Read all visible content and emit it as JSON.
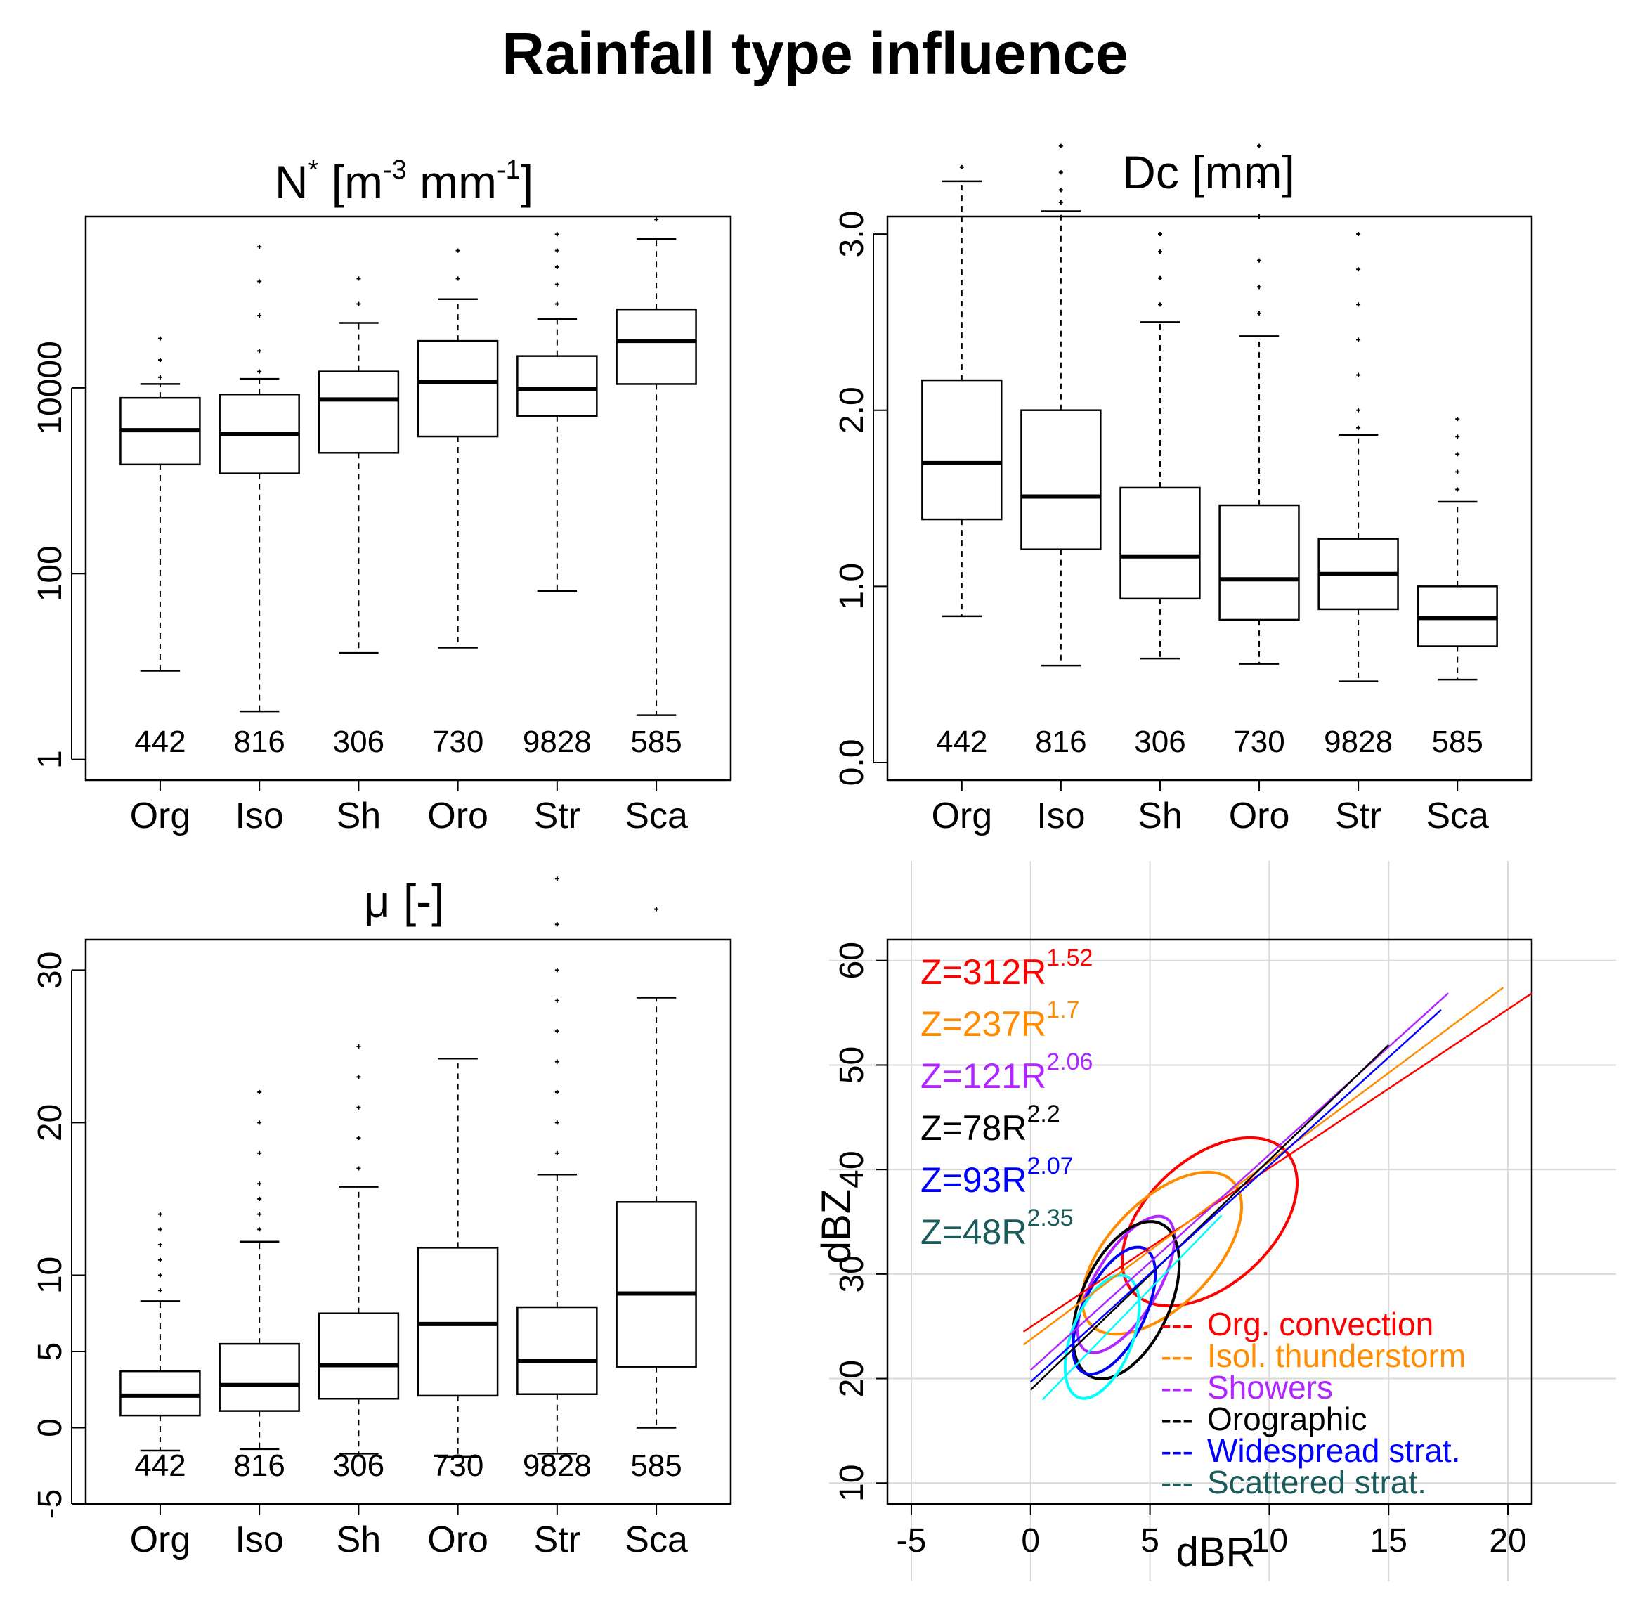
{
  "title": "Rainfall type influence",
  "colors": {
    "Org": "#ff0000",
    "Iso": "#ff8c00",
    "Sh": "#b026ff",
    "Oro": "#000000",
    "Str": "#0000ff",
    "Sca": "#00ffff",
    "Sca_text": "#1c5b5b"
  },
  "chart_data": [
    {
      "type": "box",
      "title_base": "N",
      "title_sup1": "*",
      "title_mid": " [m",
      "title_sup2": "-3",
      "title_mid2": " mm",
      "title_sup3": "-1",
      "title_end": "]",
      "yscale": "log",
      "ylim": [
        0.6,
        700000
      ],
      "yticks": [
        1,
        100,
        10000
      ],
      "ytick_labels": [
        "1",
        "100",
        "10000"
      ],
      "categories": [
        "Org",
        "Iso",
        "Sh",
        "Oro",
        "Str",
        "Sca"
      ],
      "counts": [
        "442",
        "816",
        "306",
        "730",
        "9828",
        "585"
      ],
      "boxes": [
        {
          "whislo": 9,
          "q1": 1500,
          "med": 3500,
          "q3": 7800,
          "whishi": 11000,
          "fliers_hi": [
            13000,
            20000,
            34000
          ]
        },
        {
          "whislo": 3.3,
          "q1": 1200,
          "med": 3200,
          "q3": 8500,
          "whishi": 12500,
          "fliers_hi": [
            15000,
            25000,
            60000,
            140000,
            330000
          ]
        },
        {
          "whislo": 14,
          "q1": 2000,
          "med": 7500,
          "q3": 15000,
          "whishi": 50000,
          "fliers_hi": [
            80000,
            150000
          ]
        },
        {
          "whislo": 16,
          "q1": 3000,
          "med": 11500,
          "q3": 32000,
          "whishi": 90000,
          "fliers_hi": [
            150000,
            300000
          ]
        },
        {
          "whislo": 65,
          "q1": 5000,
          "med": 9800,
          "q3": 22000,
          "whishi": 55000,
          "fliers_hi": [
            80000,
            130000,
            200000,
            300000,
            450000
          ]
        },
        {
          "whislo": 3.0,
          "q1": 11000,
          "med": 32000,
          "q3": 70000,
          "whishi": 400000,
          "fliers_hi": [
            650000
          ]
        }
      ]
    },
    {
      "type": "box",
      "title": "Dc [mm]",
      "yscale": "linear",
      "ylim": [
        -0.1,
        3.1
      ],
      "yticks": [
        0,
        1,
        2,
        3
      ],
      "ytick_labels": [
        "0.0",
        "1.0",
        "2.0",
        "3.0"
      ],
      "categories": [
        "Org",
        "Iso",
        "Sh",
        "Oro",
        "Str",
        "Sca"
      ],
      "counts": [
        "442",
        "816",
        "306",
        "730",
        "9828",
        "585"
      ],
      "boxes": [
        {
          "whislo": 0.83,
          "q1": 1.38,
          "med": 1.7,
          "q3": 2.17,
          "whishi": 3.3,
          "fliers_hi": [
            3.38
          ]
        },
        {
          "whislo": 0.55,
          "q1": 1.21,
          "med": 1.51,
          "q3": 2.0,
          "whishi": 3.13,
          "fliers_hi": [
            3.18,
            3.25,
            3.35,
            3.5
          ]
        },
        {
          "whislo": 0.59,
          "q1": 0.93,
          "med": 1.17,
          "q3": 1.56,
          "whishi": 2.5,
          "fliers_hi": [
            2.6,
            2.75,
            2.9,
            3.0
          ]
        },
        {
          "whislo": 0.56,
          "q1": 0.81,
          "med": 1.04,
          "q3": 1.46,
          "whishi": 2.42,
          "fliers_hi": [
            2.55,
            2.7,
            2.85,
            3.1,
            3.3,
            3.5
          ]
        },
        {
          "whislo": 0.46,
          "q1": 0.87,
          "med": 1.07,
          "q3": 1.27,
          "whishi": 1.86,
          "fliers_hi": [
            1.9,
            2.0,
            2.2,
            2.4,
            2.6,
            2.8,
            3.0
          ]
        },
        {
          "whislo": 0.47,
          "q1": 0.66,
          "med": 0.82,
          "q3": 1.0,
          "whishi": 1.48,
          "fliers_hi": [
            1.55,
            1.65,
            1.75,
            1.85,
            1.95
          ]
        }
      ]
    },
    {
      "type": "box",
      "title": "μ [-]",
      "yscale": "linear",
      "ylim": [
        -5,
        32
      ],
      "yticks": [
        -5,
        0,
        5,
        10,
        20,
        30
      ],
      "ytick_labels": [
        "-5",
        "0",
        "5",
        "10",
        "20",
        "30"
      ],
      "categories": [
        "Org",
        "Iso",
        "Sh",
        "Oro",
        "Str",
        "Sca"
      ],
      "counts": [
        "442",
        "816",
        "306",
        "730",
        "9828",
        "585"
      ],
      "boxes": [
        {
          "whislo": -1.5,
          "q1": 0.8,
          "med": 2.1,
          "q3": 3.7,
          "whishi": 8.3,
          "fliers_hi": [
            9,
            10,
            11,
            12,
            13,
            14
          ]
        },
        {
          "whislo": -1.4,
          "q1": 1.1,
          "med": 2.8,
          "q3": 5.5,
          "whishi": 12.2,
          "fliers_hi": [
            13,
            14,
            15,
            16,
            18,
            20,
            22
          ]
        },
        {
          "whislo": -1.7,
          "q1": 1.9,
          "med": 4.1,
          "q3": 7.5,
          "whishi": 15.8,
          "fliers_hi": [
            17,
            19,
            21,
            23,
            25
          ]
        },
        {
          "whislo": -1.9,
          "q1": 2.1,
          "med": 6.8,
          "q3": 11.8,
          "whishi": 24.2,
          "fliers_hi": []
        },
        {
          "whislo": -1.7,
          "q1": 2.2,
          "med": 4.4,
          "q3": 7.9,
          "whishi": 16.6,
          "fliers_hi": [
            18,
            20,
            22,
            24,
            26,
            28,
            30,
            33,
            36
          ]
        },
        {
          "whislo": 0,
          "q1": 4.0,
          "med": 8.8,
          "q3": 14.8,
          "whishi": 28.2,
          "fliers_hi": [
            34
          ]
        }
      ]
    },
    {
      "type": "scatter-ellipse",
      "xlabel": "dBR",
      "ylabel": "dBZ",
      "xlim": [
        -6,
        21
      ],
      "ylim": [
        8,
        62
      ],
      "xticks": [
        -5,
        0,
        5,
        10,
        15,
        20
      ],
      "yticks": [
        10,
        20,
        30,
        40,
        50,
        60
      ],
      "grid": true,
      "relations": [
        {
          "key": "Org",
          "base": "Z=312R",
          "exp": "1.52",
          "a": 312,
          "b": 1.52,
          "line_x": [
            -0.3,
            21
          ],
          "label": "Org. convection"
        },
        {
          "key": "Iso",
          "base": "Z=237R",
          "exp": "1.7",
          "a": 237,
          "b": 1.7,
          "line_x": [
            -0.3,
            19.8
          ],
          "label": "Isol. thunderstorm"
        },
        {
          "key": "Sh",
          "base": "Z=121R",
          "exp": "2.06",
          "a": 121,
          "b": 2.06,
          "line_x": [
            0,
            17.5
          ],
          "label": "Showers"
        },
        {
          "key": "Oro",
          "base": "Z=78R",
          "exp": "2.2",
          "a": 78,
          "b": 2.2,
          "line_x": [
            0,
            15
          ],
          "label": "Orographic"
        },
        {
          "key": "Str",
          "base": "Z=93R",
          "exp": "2.07",
          "a": 93,
          "b": 2.07,
          "line_x": [
            0,
            17.2
          ],
          "label": "Widespread strat."
        },
        {
          "key": "Sca",
          "base": "Z=48R",
          "exp": "2.35",
          "a": 48,
          "b": 2.35,
          "line_x": [
            0.5,
            8
          ],
          "label": "Scattered strat."
        }
      ],
      "ellipses": [
        {
          "key": "Org",
          "cx": 7.5,
          "cy": 35,
          "a": 11.5,
          "b": 6.5,
          "angle": 30
        },
        {
          "key": "Iso",
          "cx": 5.5,
          "cy": 32,
          "a": 11,
          "b": 5.5,
          "angle": 35
        },
        {
          "key": "Sh",
          "cx": 4,
          "cy": 29,
          "a": 8,
          "b": 3.5,
          "angle": 50
        },
        {
          "key": "Oro",
          "cx": 4,
          "cy": 27.5,
          "a": 8.5,
          "b": 5,
          "angle": 55
        },
        {
          "key": "Str",
          "cx": 3.5,
          "cy": 26.5,
          "a": 7,
          "b": 3.5,
          "angle": 55
        },
        {
          "key": "Sca",
          "cx": 3,
          "cy": 24,
          "a": 6.5,
          "b": 3.5,
          "angle": 60
        }
      ],
      "legend_prefix": "---",
      "legend_position": "bottom-right"
    }
  ]
}
